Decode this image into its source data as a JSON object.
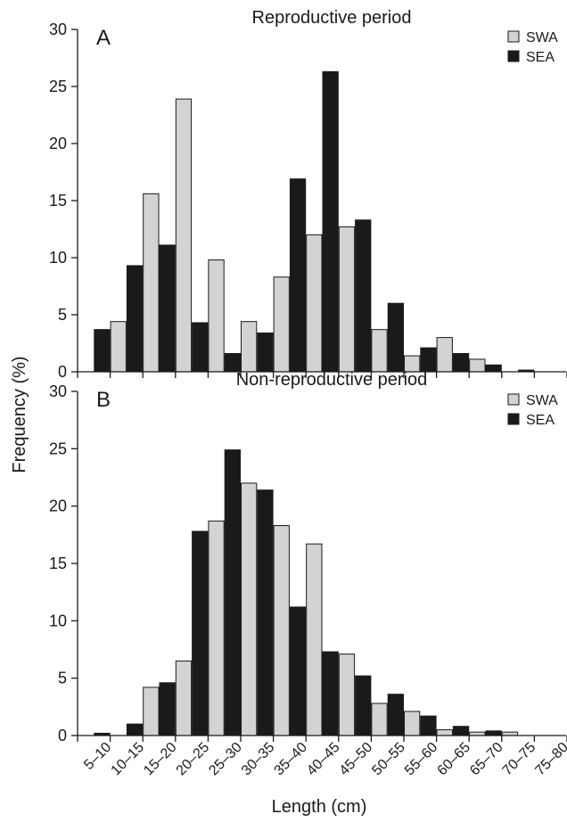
{
  "colors": {
    "SWA": "#d3d3d3",
    "SEA": "#1a1a1a"
  },
  "ylabel": "Frequency (%)",
  "xlabel": "Length (cm)",
  "chart_data": [
    {
      "type": "bar",
      "panel_letter": "A",
      "title": "Reproductive period",
      "categories": [
        "5–10",
        "10–15",
        "15–20",
        "20–25",
        "25–30",
        "30–35",
        "35–40",
        "40–45",
        "45–50",
        "50–55",
        "55–60",
        "60–65",
        "65–70",
        "70–75",
        "75–80"
      ],
      "series": [
        {
          "name": "SWA",
          "values": [
            0,
            4.4,
            15.6,
            23.9,
            9.8,
            4.4,
            8.3,
            12.0,
            12.7,
            3.7,
            1.4,
            3.0,
            1.1,
            0,
            0
          ]
        },
        {
          "name": "SEA",
          "values": [
            3.7,
            9.3,
            11.1,
            4.3,
            1.6,
            3.4,
            16.9,
            26.3,
            13.3,
            6.0,
            2.1,
            1.6,
            0.6,
            0.15,
            0
          ]
        }
      ],
      "ylim": [
        0,
        30
      ],
      "yticks": [
        0,
        5,
        10,
        15,
        20,
        25,
        30
      ],
      "legend": "top-right",
      "grid": false
    },
    {
      "type": "bar",
      "panel_letter": "B",
      "title": "Non-reproductive period",
      "categories": [
        "5–10",
        "10–15",
        "15–20",
        "20–25",
        "25–30",
        "30–35",
        "35–40",
        "40–45",
        "45–50",
        "50–55",
        "55–60",
        "60–65",
        "65–70",
        "70–75",
        "75–80"
      ],
      "series": [
        {
          "name": "SWA",
          "values": [
            0,
            0,
            4.2,
            6.5,
            18.7,
            22.0,
            18.3,
            16.7,
            7.1,
            2.8,
            2.1,
            0.5,
            0.3,
            0.3,
            0
          ]
        },
        {
          "name": "SEA",
          "values": [
            0.2,
            1.0,
            4.6,
            17.8,
            24.9,
            21.4,
            11.2,
            7.3,
            5.2,
            3.6,
            1.7,
            0.8,
            0.4,
            0,
            0
          ]
        }
      ],
      "ylim": [
        0,
        30
      ],
      "yticks": [
        0,
        5,
        10,
        15,
        20,
        25,
        30
      ],
      "legend": "top-right",
      "grid": false
    }
  ]
}
